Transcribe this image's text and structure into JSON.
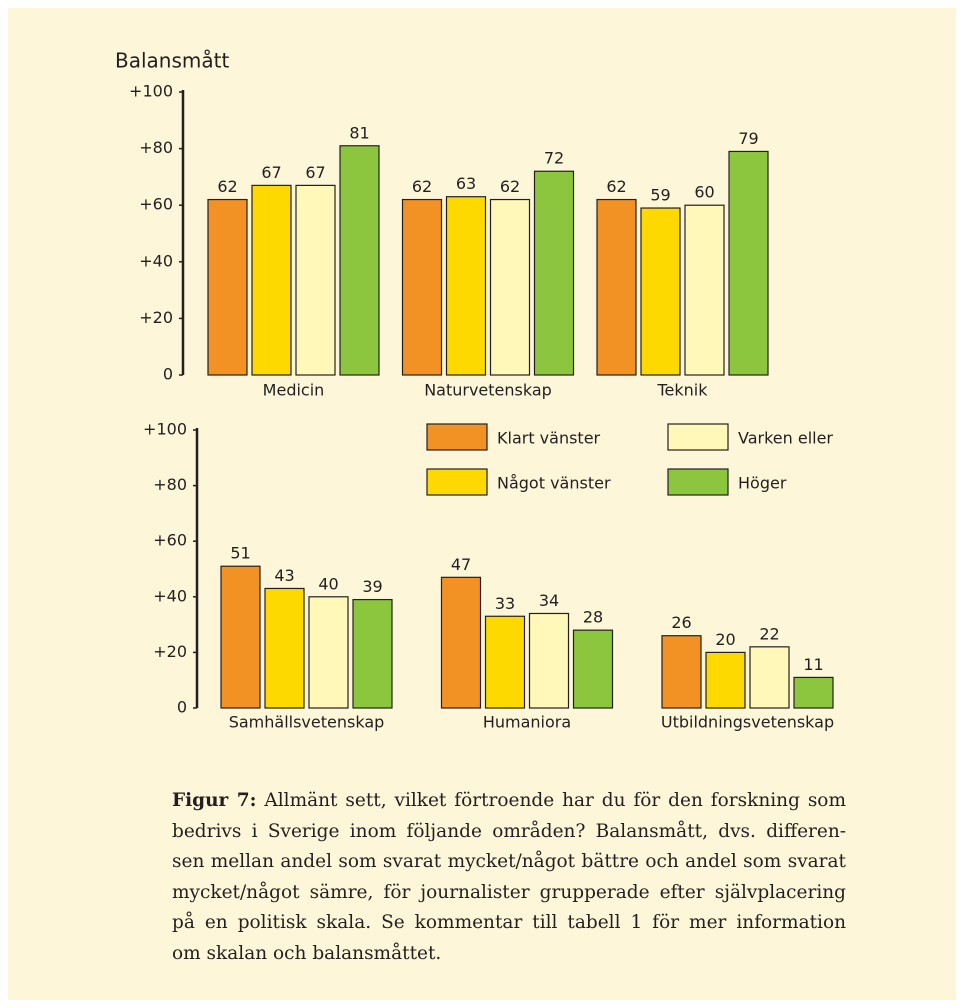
{
  "chart_data": [
    {
      "type": "bar",
      "y_label": "Balansmått",
      "categories": [
        "Medicin",
        "Naturvetenskap",
        "Teknik"
      ],
      "series": [
        {
          "color": "#f39224",
          "values": [
            62,
            62,
            62
          ]
        },
        {
          "color": "#fdd900",
          "values": [
            67,
            63,
            59
          ]
        },
        {
          "color": "#fff8b8",
          "values": [
            67,
            62,
            60
          ]
        },
        {
          "color": "#8cc63f",
          "values": [
            81,
            72,
            79
          ]
        }
      ],
      "ylim": [
        0,
        100
      ],
      "yticks": [
        0,
        {
          "value": 20,
          "label": "+20"
        },
        {
          "value": 40,
          "label": "+40"
        },
        {
          "value": 60,
          "label": "+60"
        },
        {
          "value": 80,
          "label": "+80"
        },
        {
          "value": 100,
          "label": "+100"
        }
      ]
    },
    {
      "type": "bar",
      "categories": [
        "Samhällsvetenskap",
        "Humaniora",
        "Utbildningsvetenskap"
      ],
      "series": [
        {
          "name": "Klart vänster",
          "color": "#f39224",
          "values": [
            51,
            47,
            26
          ]
        },
        {
          "name": "Något vänster",
          "color": "#fdd900",
          "values": [
            43,
            33,
            20
          ]
        },
        {
          "name": "Varken eller",
          "color": "#fff8b8",
          "values": [
            40,
            34,
            22
          ]
        },
        {
          "name": "Höger",
          "color": "#8cc63f",
          "values": [
            39,
            28,
            11
          ]
        }
      ],
      "ylim": [
        0,
        100
      ],
      "yticks": [
        0,
        {
          "value": 20,
          "label": "+20"
        },
        {
          "value": 40,
          "label": "+40"
        },
        {
          "value": 60,
          "label": "+60"
        },
        {
          "value": 80,
          "label": "+80"
        },
        {
          "value": 100,
          "label": "+100"
        }
      ],
      "legend": "top-right"
    }
  ],
  "caption": {
    "label": "Figur 7:",
    "lines": [
      "Allmänt sett, vilket förtroende har du för den forskning som",
      "bedrivs i Sverige inom följande områden? Balansmått, dvs. differen-",
      "sen mellan andel som svarat mycket/något bättre och andel som svarat",
      "mycket/något sämre, för journalister grupperade efter självplacering",
      "på en politisk skala. Se kommentar till tabell 1 för mer information",
      "om skalan och balansmåttet."
    ]
  }
}
